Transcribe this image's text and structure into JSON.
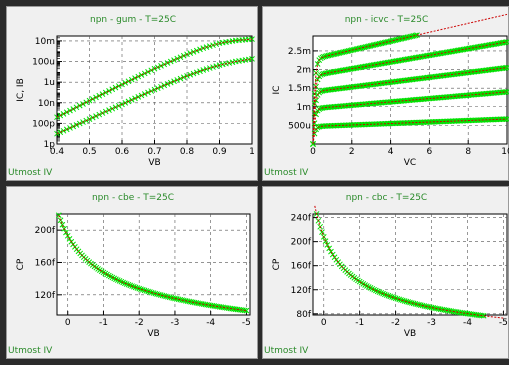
{
  "footer_label": "Utmost IV",
  "colors": {
    "measured": "#00e000",
    "simulated": "#cc0000",
    "title": "#2a8a2a",
    "grid": "#555555"
  },
  "chart_data": [
    {
      "type": "scatter",
      "title": "npn - gum - T=25C",
      "xlabel": "VB",
      "ylabel": "IC, IB",
      "xlim": [
        0.4,
        1.0
      ],
      "ylog": true,
      "ylim": [
        1e-12,
        0.03
      ],
      "xticks": [
        0.4,
        0.5,
        0.6,
        0.7,
        0.8,
        0.9,
        1
      ],
      "xticklabels": [
        "0.4",
        "0.5",
        "0.6",
        "0.7",
        "0.8",
        "0.9",
        "1"
      ],
      "yticks": [
        1e-12,
        1e-10,
        1e-08,
        1e-06,
        0.0001,
        0.01
      ],
      "yticklabels": [
        "1p",
        "100p",
        "10n",
        "1u",
        "100u",
        "10m"
      ],
      "grid": true,
      "series": [
        {
          "x": [
            0.4,
            0.45,
            0.5,
            0.55,
            0.6,
            0.65,
            0.7,
            0.75,
            0.8,
            0.85,
            0.9,
            0.95,
            1.0
          ],
          "y": [
            4e-10,
            2.5e-09,
            1.6e-08,
            1e-07,
            6e-07,
            3.5e-06,
            2e-05,
            0.0001,
            0.0005,
            0.002,
            0.006,
            0.011,
            0.015
          ]
        },
        {
          "x": [
            0.4,
            0.45,
            0.5,
            0.55,
            0.6,
            0.65,
            0.7,
            0.75,
            0.8,
            0.85,
            0.9,
            0.95,
            1.0
          ],
          "y": [
            1e-11,
            5e-11,
            2.6e-10,
            1.4e-09,
            7e-09,
            3.7e-08,
            1.9e-07,
            9e-07,
            4e-06,
            1.5e-05,
            4.5e-05,
            0.0001,
            0.00018
          ]
        }
      ]
    },
    {
      "type": "scatter",
      "title": "npn - icvc - T=25C",
      "xlabel": "VC",
      "ylabel": "IC",
      "xlim": [
        0,
        10
      ],
      "ylim": [
        0,
        0.0029
      ],
      "xticks": [
        0,
        2,
        4,
        6,
        8,
        10
      ],
      "xticklabels": [
        "0",
        "2",
        "4",
        "6",
        "8",
        "10"
      ],
      "yticks": [
        0.0005,
        0.001,
        0.0015,
        0.002,
        0.0025
      ],
      "yticklabels": [
        "500u",
        "1m",
        "1.5m",
        "2m",
        "2.5m"
      ],
      "grid": true,
      "series": [
        {
          "sat": 0.00047,
          "slope": 2e-06
        },
        {
          "sat": 0.00095,
          "slope": 4.5e-06
        },
        {
          "sat": 0.0014,
          "slope": 6.5e-06
        },
        {
          "sat": 0.00184,
          "slope": 9e-06
        },
        {
          "sat": 0.00228,
          "slope": 1.2e-05
        }
      ]
    },
    {
      "type": "scatter",
      "title": "npn - cbe - T=25C",
      "xlabel": "VB",
      "ylabel": "CP",
      "xlim": [
        0.3,
        -5.1
      ],
      "ylim": [
        9.5e-14,
        2.2e-13
      ],
      "xticks": [
        0,
        -1,
        -2,
        -3,
        -4,
        -5
      ],
      "xticklabels": [
        "0",
        "-1",
        "-2",
        "-3",
        "-4",
        "-5"
      ],
      "yticks": [
        1.2e-13,
        1.6e-13,
        2e-13
      ],
      "yticklabels": [
        "120f",
        "160f",
        "200f"
      ],
      "grid": true,
      "series": [
        {
          "c0": 1.93e-13,
          "vj": 0.8,
          "m": 0.33,
          "vmin": -5.0,
          "vmax": 0.25
        }
      ]
    },
    {
      "type": "scatter",
      "title": "npn - cbc - T=25C",
      "xlabel": "VB",
      "ylabel": "CP",
      "xlim": [
        0.3,
        -5.1
      ],
      "ylim": [
        7.8e-14,
        2.46e-13
      ],
      "xticks": [
        0,
        -1,
        -2,
        -3,
        -4,
        -5
      ],
      "xticklabels": [
        "0",
        "-1",
        "-2",
        "-3",
        "-4",
        "-5"
      ],
      "yticks": [
        8e-14,
        1.2e-13,
        1.6e-13,
        2e-13,
        2.4e-13
      ],
      "yticklabels": [
        "80f",
        "120f",
        "160f",
        "200f",
        "240f"
      ],
      "grid": true,
      "series": [
        {
          "c0": 2.08e-13,
          "vj": 0.7,
          "m": 0.5,
          "vmin": -5.0,
          "vmax": 0.25
        }
      ]
    }
  ]
}
